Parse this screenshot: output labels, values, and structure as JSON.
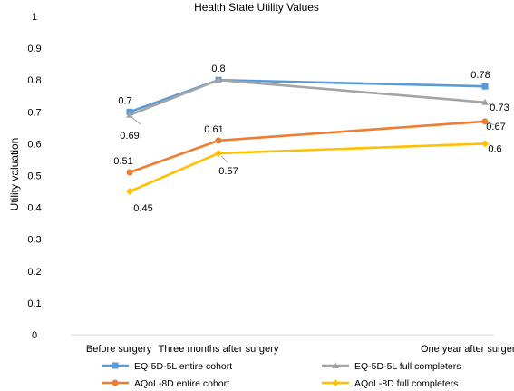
{
  "chart_data": {
    "type": "line",
    "title": "Health State Utility Values",
    "xlabel": "",
    "ylabel": "Utility valuation",
    "ylim": [
      0,
      1
    ],
    "yticks": [
      "0",
      "0.1",
      "0.2",
      "0.3",
      "0.4",
      "0.5",
      "0.6",
      "0.7",
      "0.8",
      "0.9",
      "1"
    ],
    "categories": [
      "Before surgery",
      "Three months after surgery",
      "One year after surgery"
    ],
    "x_months": [
      0,
      3,
      12
    ],
    "grid": false,
    "legend_position": "bottom",
    "series": [
      {
        "name": "EQ-5D-5L entire cohort",
        "values": [
          0.7,
          0.8,
          0.78
        ],
        "labels": [
          "0.7",
          "0.8",
          "0.78"
        ],
        "color": "#5B9BD5",
        "marker": "square"
      },
      {
        "name": "EQ-5D-5L full completers",
        "values": [
          0.69,
          0.8,
          0.73
        ],
        "labels": [
          "0.69",
          "",
          "0.73"
        ],
        "color": "#A5A5A5",
        "marker": "triangle"
      },
      {
        "name": "AQoL-8D entire cohort",
        "values": [
          0.51,
          0.61,
          0.67
        ],
        "labels": [
          "0.51",
          "0.61",
          "0.67"
        ],
        "color": "#ED7D31",
        "marker": "circle"
      },
      {
        "name": "AQoL-8D full completers",
        "values": [
          0.45,
          0.57,
          0.6
        ],
        "labels": [
          "0.45",
          "0.57",
          "0.6"
        ],
        "color": "#FFC000",
        "marker": "diamond"
      }
    ]
  }
}
